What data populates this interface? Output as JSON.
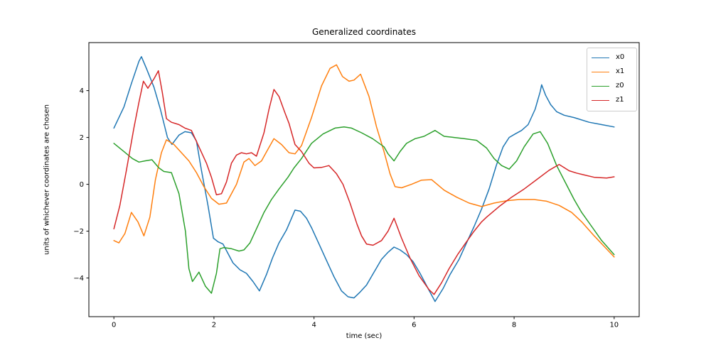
{
  "figure": {
    "background": "#ffffff"
  },
  "chart_data": {
    "type": "line",
    "title": "Generalized coordinates",
    "xlabel": "time (sec)",
    "ylabel": "units of whichever coordinates are chosen",
    "xlim": [
      -0.5,
      10.5
    ],
    "ylim": [
      -5.65,
      6.05
    ],
    "grid": false,
    "legend_position": "upper right",
    "xticks": [
      {
        "v": 0,
        "label": "0"
      },
      {
        "v": 2,
        "label": "2"
      },
      {
        "v": 4,
        "label": "4"
      },
      {
        "v": 6,
        "label": "6"
      },
      {
        "v": 8,
        "label": "8"
      },
      {
        "v": 10,
        "label": "10"
      }
    ],
    "yticks": [
      {
        "v": -4,
        "label": "−4"
      },
      {
        "v": -2,
        "label": "−2"
      },
      {
        "v": 0,
        "label": "0"
      },
      {
        "v": 2,
        "label": "2"
      },
      {
        "v": 4,
        "label": "4"
      }
    ],
    "series": [
      {
        "name": "x0",
        "color": "#1f77b4",
        "points": [
          [
            0,
            2.4
          ],
          [
            0.2,
            3.3
          ],
          [
            0.35,
            4.3
          ],
          [
            0.5,
            5.25
          ],
          [
            0.55,
            5.45
          ],
          [
            0.65,
            4.95
          ],
          [
            0.8,
            4.15
          ],
          [
            0.93,
            3.2
          ],
          [
            1.07,
            2.0
          ],
          [
            1.16,
            1.7
          ],
          [
            1.3,
            2.1
          ],
          [
            1.42,
            2.25
          ],
          [
            1.55,
            2.2
          ],
          [
            1.65,
            1.85
          ],
          [
            1.75,
            0.6
          ],
          [
            1.88,
            -0.9
          ],
          [
            1.99,
            -2.3
          ],
          [
            2.08,
            -2.45
          ],
          [
            2.18,
            -2.55
          ],
          [
            2.28,
            -2.95
          ],
          [
            2.38,
            -3.35
          ],
          [
            2.52,
            -3.65
          ],
          [
            2.65,
            -3.8
          ],
          [
            2.78,
            -4.15
          ],
          [
            2.91,
            -4.55
          ],
          [
            3.05,
            -3.85
          ],
          [
            3.17,
            -3.15
          ],
          [
            3.3,
            -2.5
          ],
          [
            3.45,
            -1.95
          ],
          [
            3.55,
            -1.45
          ],
          [
            3.62,
            -1.1
          ],
          [
            3.73,
            -1.15
          ],
          [
            3.85,
            -1.45
          ],
          [
            3.95,
            -1.85
          ],
          [
            4.1,
            -2.55
          ],
          [
            4.25,
            -3.25
          ],
          [
            4.4,
            -3.95
          ],
          [
            4.55,
            -4.55
          ],
          [
            4.68,
            -4.8
          ],
          [
            4.8,
            -4.85
          ],
          [
            4.92,
            -4.6
          ],
          [
            5.05,
            -4.3
          ],
          [
            5.2,
            -3.75
          ],
          [
            5.35,
            -3.2
          ],
          [
            5.48,
            -2.9
          ],
          [
            5.6,
            -2.68
          ],
          [
            5.72,
            -2.8
          ],
          [
            5.85,
            -3.0
          ],
          [
            5.98,
            -3.3
          ],
          [
            6.12,
            -3.8
          ],
          [
            6.28,
            -4.45
          ],
          [
            6.42,
            -5.0
          ],
          [
            6.58,
            -4.45
          ],
          [
            6.72,
            -3.85
          ],
          [
            6.9,
            -3.2
          ],
          [
            7.05,
            -2.5
          ],
          [
            7.2,
            -1.8
          ],
          [
            7.35,
            -1.05
          ],
          [
            7.5,
            -0.2
          ],
          [
            7.65,
            0.85
          ],
          [
            7.78,
            1.6
          ],
          [
            7.9,
            2.0
          ],
          [
            8.02,
            2.15
          ],
          [
            8.15,
            2.3
          ],
          [
            8.28,
            2.55
          ],
          [
            8.42,
            3.2
          ],
          [
            8.52,
            3.95
          ],
          [
            8.55,
            4.25
          ],
          [
            8.63,
            3.8
          ],
          [
            8.73,
            3.4
          ],
          [
            8.85,
            3.1
          ],
          [
            9.0,
            2.95
          ],
          [
            9.2,
            2.85
          ],
          [
            9.5,
            2.65
          ],
          [
            9.75,
            2.55
          ],
          [
            10,
            2.45
          ]
        ]
      },
      {
        "name": "x1",
        "color": "#ff7f0e",
        "points": [
          [
            0,
            -2.4
          ],
          [
            0.1,
            -2.5
          ],
          [
            0.22,
            -2.1
          ],
          [
            0.35,
            -1.2
          ],
          [
            0.48,
            -1.6
          ],
          [
            0.6,
            -2.2
          ],
          [
            0.72,
            -1.4
          ],
          [
            0.83,
            0.2
          ],
          [
            0.95,
            1.35
          ],
          [
            1.05,
            1.9
          ],
          [
            1.2,
            1.7
          ],
          [
            1.35,
            1.35
          ],
          [
            1.5,
            1.0
          ],
          [
            1.65,
            0.5
          ],
          [
            1.8,
            -0.1
          ],
          [
            1.95,
            -0.6
          ],
          [
            2.1,
            -0.85
          ],
          [
            2.25,
            -0.8
          ],
          [
            2.45,
            0.0
          ],
          [
            2.6,
            0.95
          ],
          [
            2.7,
            1.1
          ],
          [
            2.82,
            0.8
          ],
          [
            2.95,
            1.0
          ],
          [
            3.08,
            1.5
          ],
          [
            3.2,
            1.95
          ],
          [
            3.35,
            1.7
          ],
          [
            3.5,
            1.35
          ],
          [
            3.62,
            1.3
          ],
          [
            3.75,
            1.65
          ],
          [
            3.95,
            2.85
          ],
          [
            4.15,
            4.2
          ],
          [
            4.32,
            4.95
          ],
          [
            4.45,
            5.1
          ],
          [
            4.57,
            4.6
          ],
          [
            4.7,
            4.4
          ],
          [
            4.8,
            4.45
          ],
          [
            4.93,
            4.7
          ],
          [
            5.1,
            3.75
          ],
          [
            5.25,
            2.45
          ],
          [
            5.4,
            1.4
          ],
          [
            5.52,
            0.45
          ],
          [
            5.62,
            -0.1
          ],
          [
            5.75,
            -0.15
          ],
          [
            5.95,
            0.0
          ],
          [
            6.15,
            0.18
          ],
          [
            6.35,
            0.2
          ],
          [
            6.6,
            -0.25
          ],
          [
            6.85,
            -0.55
          ],
          [
            7.1,
            -0.8
          ],
          [
            7.35,
            -0.95
          ],
          [
            7.6,
            -0.8
          ],
          [
            7.85,
            -0.7
          ],
          [
            8.1,
            -0.65
          ],
          [
            8.4,
            -0.65
          ],
          [
            8.65,
            -0.72
          ],
          [
            8.9,
            -0.9
          ],
          [
            9.15,
            -1.2
          ],
          [
            9.35,
            -1.6
          ],
          [
            9.6,
            -2.2
          ],
          [
            9.8,
            -2.65
          ],
          [
            10,
            -3.1
          ]
        ]
      },
      {
        "name": "z0",
        "color": "#2ca02c",
        "points": [
          [
            0,
            1.75
          ],
          [
            0.2,
            1.4
          ],
          [
            0.37,
            1.1
          ],
          [
            0.5,
            0.95
          ],
          [
            0.62,
            1.0
          ],
          [
            0.76,
            1.05
          ],
          [
            0.9,
            0.7
          ],
          [
            1.0,
            0.55
          ],
          [
            1.15,
            0.5
          ],
          [
            1.3,
            -0.4
          ],
          [
            1.43,
            -2.0
          ],
          [
            1.5,
            -3.6
          ],
          [
            1.57,
            -4.15
          ],
          [
            1.7,
            -3.75
          ],
          [
            1.83,
            -4.35
          ],
          [
            1.95,
            -4.65
          ],
          [
            2.05,
            -3.8
          ],
          [
            2.12,
            -2.75
          ],
          [
            2.2,
            -2.7
          ],
          [
            2.35,
            -2.75
          ],
          [
            2.5,
            -2.85
          ],
          [
            2.6,
            -2.8
          ],
          [
            2.72,
            -2.5
          ],
          [
            2.85,
            -1.9
          ],
          [
            3.0,
            -1.2
          ],
          [
            3.15,
            -0.65
          ],
          [
            3.3,
            -0.2
          ],
          [
            3.48,
            0.3
          ],
          [
            3.6,
            0.7
          ],
          [
            3.75,
            1.1
          ],
          [
            3.95,
            1.75
          ],
          [
            4.18,
            2.15
          ],
          [
            4.42,
            2.4
          ],
          [
            4.6,
            2.45
          ],
          [
            4.75,
            2.4
          ],
          [
            4.95,
            2.2
          ],
          [
            5.17,
            1.95
          ],
          [
            5.4,
            1.6
          ],
          [
            5.48,
            1.3
          ],
          [
            5.6,
            1.0
          ],
          [
            5.72,
            1.4
          ],
          [
            5.85,
            1.75
          ],
          [
            6.02,
            1.95
          ],
          [
            6.2,
            2.05
          ],
          [
            6.42,
            2.3
          ],
          [
            6.6,
            2.05
          ],
          [
            6.8,
            2.0
          ],
          [
            7.0,
            1.95
          ],
          [
            7.25,
            1.88
          ],
          [
            7.45,
            1.55
          ],
          [
            7.6,
            1.1
          ],
          [
            7.75,
            0.8
          ],
          [
            7.9,
            0.65
          ],
          [
            8.05,
            1.0
          ],
          [
            8.2,
            1.6
          ],
          [
            8.38,
            2.15
          ],
          [
            8.52,
            2.25
          ],
          [
            8.67,
            1.75
          ],
          [
            8.85,
            0.8
          ],
          [
            9.03,
            0.05
          ],
          [
            9.2,
            -0.65
          ],
          [
            9.35,
            -1.2
          ],
          [
            9.55,
            -1.8
          ],
          [
            9.75,
            -2.4
          ],
          [
            10,
            -3.0
          ]
        ]
      },
      {
        "name": "z1",
        "color": "#d62728",
        "points": [
          [
            0,
            -1.9
          ],
          [
            0.12,
            -0.9
          ],
          [
            0.25,
            0.6
          ],
          [
            0.4,
            2.4
          ],
          [
            0.5,
            3.5
          ],
          [
            0.59,
            4.4
          ],
          [
            0.68,
            4.1
          ],
          [
            0.8,
            4.5
          ],
          [
            0.89,
            4.85
          ],
          [
            0.97,
            3.9
          ],
          [
            1.05,
            2.8
          ],
          [
            1.15,
            2.65
          ],
          [
            1.3,
            2.55
          ],
          [
            1.42,
            2.4
          ],
          [
            1.55,
            2.3
          ],
          [
            1.7,
            1.6
          ],
          [
            1.85,
            0.9
          ],
          [
            1.95,
            0.3
          ],
          [
            2.05,
            -0.45
          ],
          [
            2.15,
            -0.4
          ],
          [
            2.25,
            0.1
          ],
          [
            2.35,
            0.9
          ],
          [
            2.45,
            1.25
          ],
          [
            2.55,
            1.35
          ],
          [
            2.65,
            1.3
          ],
          [
            2.75,
            1.35
          ],
          [
            2.85,
            1.2
          ],
          [
            3.0,
            2.2
          ],
          [
            3.1,
            3.2
          ],
          [
            3.2,
            4.05
          ],
          [
            3.3,
            3.75
          ],
          [
            3.42,
            3.05
          ],
          [
            3.5,
            2.6
          ],
          [
            3.62,
            1.7
          ],
          [
            3.75,
            1.4
          ],
          [
            3.9,
            0.9
          ],
          [
            4.0,
            0.7
          ],
          [
            4.15,
            0.72
          ],
          [
            4.3,
            0.8
          ],
          [
            4.45,
            0.45
          ],
          [
            4.58,
            0.0
          ],
          [
            4.72,
            -0.8
          ],
          [
            4.86,
            -1.7
          ],
          [
            4.95,
            -2.2
          ],
          [
            5.05,
            -2.55
          ],
          [
            5.18,
            -2.6
          ],
          [
            5.35,
            -2.4
          ],
          [
            5.48,
            -2.0
          ],
          [
            5.6,
            -1.45
          ],
          [
            5.75,
            -2.3
          ],
          [
            5.92,
            -3.15
          ],
          [
            6.1,
            -3.9
          ],
          [
            6.3,
            -4.5
          ],
          [
            6.4,
            -4.7
          ],
          [
            6.55,
            -4.2
          ],
          [
            6.7,
            -3.6
          ],
          [
            6.87,
            -3.0
          ],
          [
            7.05,
            -2.45
          ],
          [
            7.2,
            -2.0
          ],
          [
            7.35,
            -1.6
          ],
          [
            7.45,
            -1.4
          ],
          [
            7.7,
            -0.95
          ],
          [
            7.95,
            -0.55
          ],
          [
            8.2,
            -0.2
          ],
          [
            8.45,
            0.2
          ],
          [
            8.7,
            0.6
          ],
          [
            8.9,
            0.85
          ],
          [
            9.1,
            0.58
          ],
          [
            9.25,
            0.48
          ],
          [
            9.4,
            0.4
          ],
          [
            9.6,
            0.3
          ],
          [
            9.85,
            0.27
          ],
          [
            10,
            0.32
          ]
        ]
      }
    ]
  }
}
